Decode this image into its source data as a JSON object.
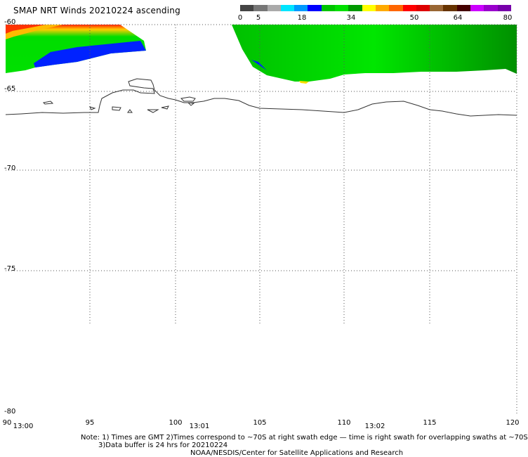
{
  "title": "SMAP NRT Winds 20210224 ascending",
  "colorbar": {
    "labels": [
      "0",
      "5",
      "18",
      "34",
      "50",
      "64",
      "80"
    ],
    "segments": [
      "#444444",
      "#777777",
      "#aaaaaa",
      "#00e5ff",
      "#0099ff",
      "#0000ff",
      "#00c400",
      "#00e000",
      "#009900",
      "#ffff00",
      "#ffaa00",
      "#ff6600",
      "#ff0000",
      "#dd0000",
      "#996633",
      "#663300",
      "#440000",
      "#cc00ff",
      "#9900cc",
      "#7700aa"
    ]
  },
  "lat_labels": [
    "-60",
    "-65",
    "-70",
    "-75",
    "-80"
  ],
  "lon_labels": [
    "90",
    "95",
    "100",
    "105",
    "110",
    "115",
    "120"
  ],
  "time_labels": [
    "13:00",
    "13:01",
    "13:02"
  ],
  "notes": {
    "line1": "Note: 1) Times are GMT 2)Times correspond to ~70S at right swath edge — time is right swath for overlapping swaths at ~70S",
    "line2": "3)Data buffer is 24 hrs for 20210224",
    "line3": "NOAA/NESDIS/Center for Satellite Applications and Research"
  }
}
